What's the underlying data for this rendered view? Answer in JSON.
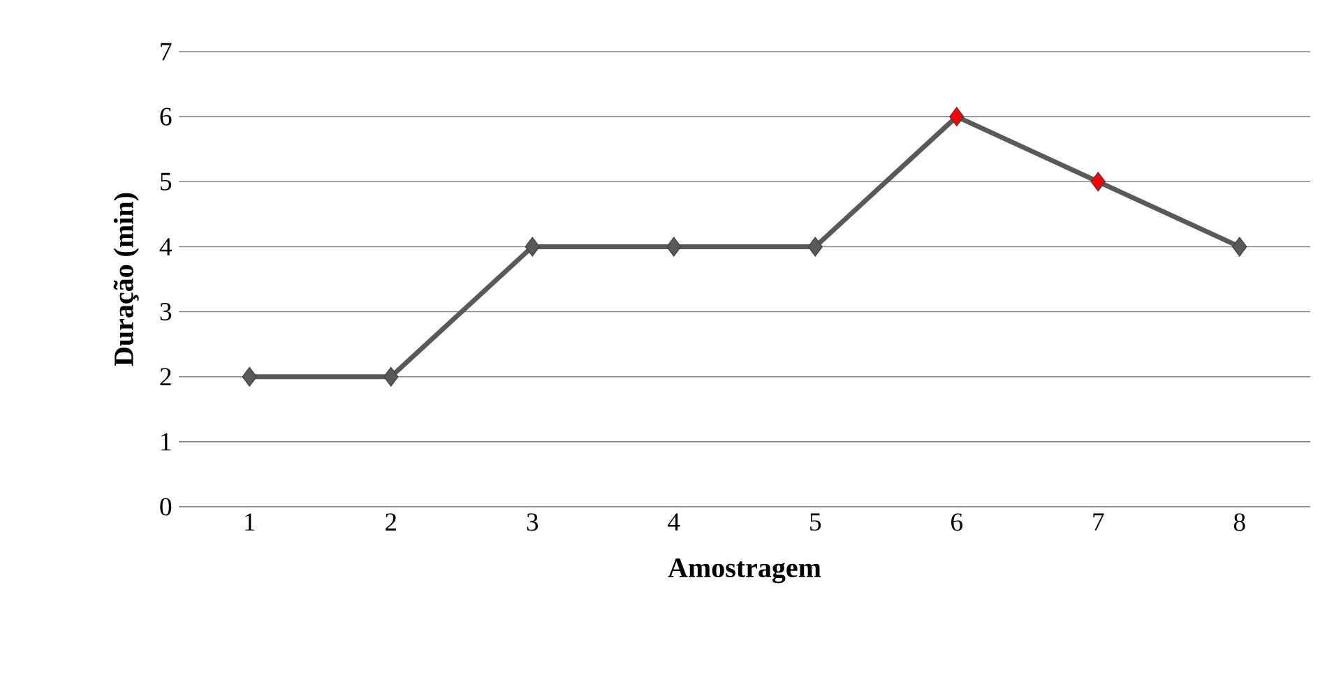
{
  "chart_data": {
    "type": "line",
    "xlabel": "Amostragem",
    "ylabel": "Duração (min)",
    "categories": [
      "1",
      "2",
      "3",
      "4",
      "5",
      "6",
      "7",
      "8"
    ],
    "series": [
      {
        "color": "#595959",
        "colors": [
          "#595959",
          "#595959",
          "#595959",
          "#595959",
          "#595959",
          "#ff0000",
          "#ff0000",
          "#595959"
        ],
        "values": [
          2,
          2,
          4,
          4,
          4,
          6,
          5,
          4
        ]
      }
    ],
    "ylim": [
      0,
      7
    ],
    "yticks": [
      0,
      1,
      2,
      3,
      4,
      5,
      6,
      7
    ],
    "grid": "y",
    "marker": "diamond",
    "line_style": "solid",
    "legend": false
  }
}
